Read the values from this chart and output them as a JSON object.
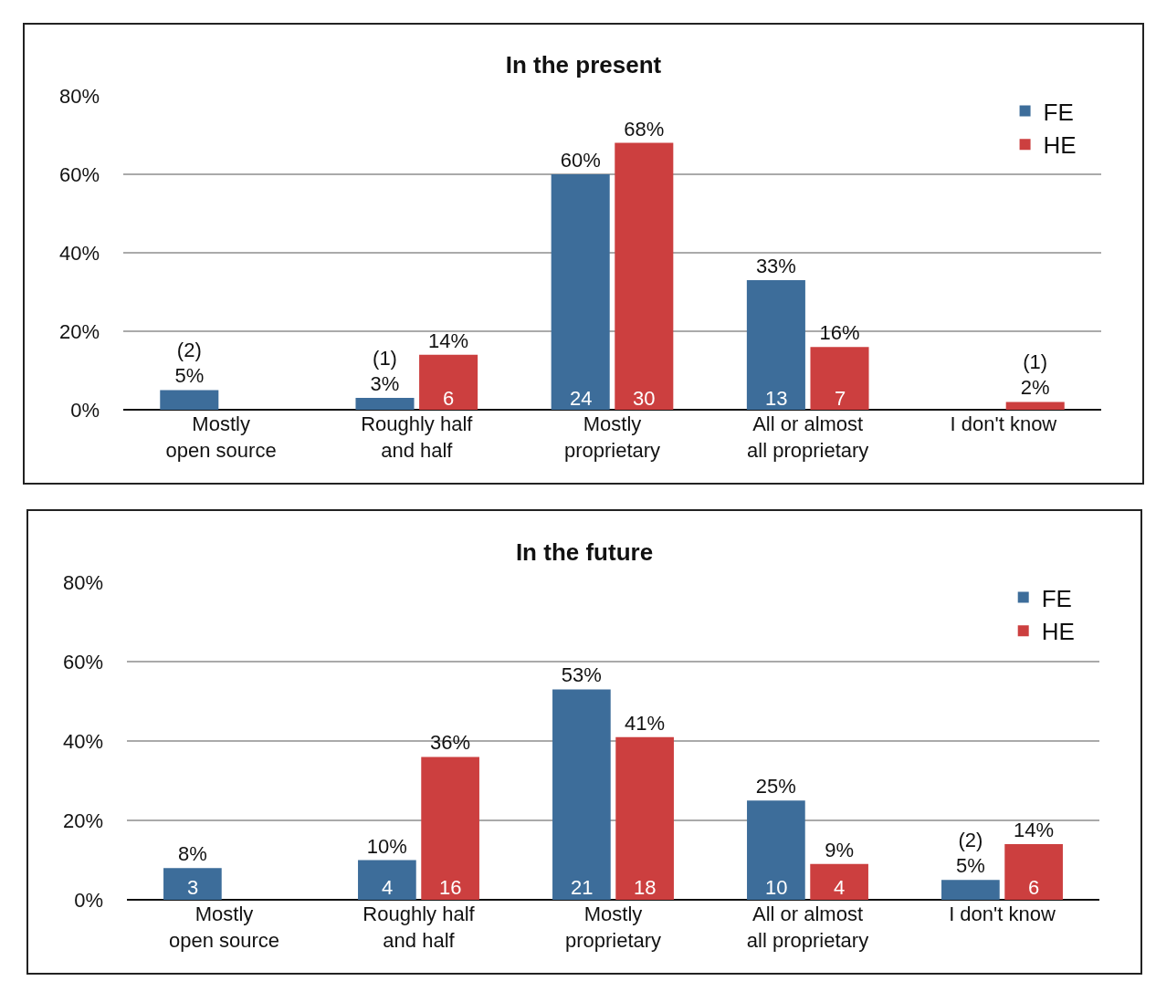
{
  "chart_data": [
    {
      "type": "bar",
      "title": "In the present",
      "categories": [
        "Mostly\nopen source",
        "Roughly half\nand half",
        "Mostly\nproprietary",
        "All or almost\nall proprietary",
        "I don't know"
      ],
      "series": [
        {
          "name": "FE",
          "color": "#3d6d9a",
          "values": [
            5,
            3,
            60,
            33,
            null
          ],
          "value_labels": [
            "(2)\n5%",
            "(1)\n3%",
            "60%",
            "33%",
            null
          ]
        },
        {
          "name": "HE",
          "color": "#cc3f3f",
          "values": [
            null,
            14,
            68,
            16,
            2
          ],
          "value_labels": [
            null,
            "14%",
            "68%",
            "16%",
            "(1)\n2%"
          ]
        }
      ],
      "annotations": [
        {
          "text": "6",
          "x": "Roughly half\nand half",
          "y": 3
        },
        {
          "text": "24",
          "x": "Mostly\nproprietary",
          "y": 3
        },
        {
          "text": "30",
          "x": "Mostly\nproprietary",
          "y": 3
        },
        {
          "text": "13",
          "x": "All or almost\nall proprietary",
          "y": 3
        },
        {
          "text": "7",
          "x": "All or almost\nall proprietary",
          "y": 3
        }
      ],
      "ylim": [
        0,
        80
      ],
      "yticks": [
        {
          "value": 0,
          "label": "0%"
        },
        {
          "value": 20,
          "label": "20%"
        },
        {
          "value": 40,
          "label": "40%"
        },
        {
          "value": 60,
          "label": "60%"
        },
        {
          "value": 80,
          "label": "80%"
        }
      ],
      "grid": "y",
      "legend": "top right"
    },
    {
      "type": "bar",
      "title": "In the future",
      "categories": [
        "Mostly\nopen source",
        "Roughly half\nand half",
        "Mostly\nproprietary",
        "All or almost\nall proprietary",
        "I don't know"
      ],
      "series": [
        {
          "name": "FE",
          "color": "#3d6d9a",
          "values": [
            8,
            10,
            53,
            25,
            5
          ],
          "value_labels": [
            "8%",
            "10%",
            "53%",
            "25%",
            "(2)\n5%"
          ]
        },
        {
          "name": "HE",
          "color": "#cc3f3f",
          "values": [
            null,
            36,
            41,
            9,
            14
          ],
          "value_labels": [
            null,
            "36%",
            "41%",
            "9%",
            "14%"
          ]
        }
      ],
      "annotations": [
        {
          "text": "3",
          "x": "Mostly\nopen source",
          "y": 3
        },
        {
          "text": "4",
          "x": "Roughly half\nand half",
          "y": 3
        },
        {
          "text": "16",
          "x": "Roughly half\nand half",
          "y": 3
        },
        {
          "text": "21",
          "x": "Mostly\nproprietary",
          "y": 3
        },
        {
          "text": "18",
          "x": "Mostly\nproprietary",
          "y": 3
        },
        {
          "text": "10",
          "x": "All or almost\nall proprietary",
          "y": 3
        },
        {
          "text": "4",
          "x": "All or almost\nall proprietary",
          "y": 3
        },
        {
          "text": "6",
          "x": "I don't know",
          "y": 3
        }
      ],
      "ylim": [
        0,
        80
      ],
      "yticks": [
        {
          "value": 0,
          "label": "0%"
        },
        {
          "value": 20,
          "label": "20%"
        },
        {
          "value": 40,
          "label": "40%"
        },
        {
          "value": 60,
          "label": "60%"
        },
        {
          "value": 80,
          "label": "80%"
        }
      ],
      "grid": "y",
      "legend": "top right"
    }
  ]
}
